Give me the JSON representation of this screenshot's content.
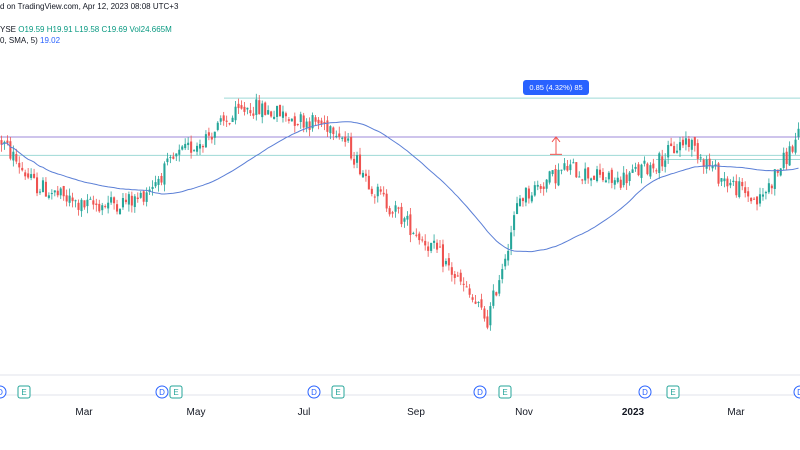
{
  "header": {
    "line1": "d on TradingView.com, Apr 12, 2023 08:08 UTC+3",
    "ticker_prefix": "YSE",
    "open": "O19.59",
    "high": "H19.91",
    "low": "L19.58",
    "close": "C19.69",
    "volume": "Vol24.665M",
    "ma_label": "0, SMA, 5)",
    "ma_value": "19.02"
  },
  "measure_label": "0.85 (4.32%) 85",
  "colors": {
    "up": "#26a69a",
    "down": "#ef5350",
    "sma": "#5b7fd6",
    "horizontal_line_purple": "#9c8ad8",
    "horizontal_line_cyan": "#9ed9d6",
    "event_dividend": "#2962ff",
    "event_earnings": "#26a69a",
    "axis_text": "#131722",
    "background": "#ffffff"
  },
  "x_axis_labels": [
    "Mar",
    "May",
    "Jul",
    "Sep",
    "Nov",
    "2023",
    "Mar"
  ],
  "event_markers": [
    "D",
    "E",
    "D",
    "E",
    "D",
    "E",
    "D",
    "E",
    "D",
    "E",
    "D"
  ],
  "chart_data": {
    "type": "candlestick",
    "title": "",
    "xlabel": "",
    "ylabel": "",
    "x_ticks": [
      "Mar",
      "May",
      "Jul",
      "Sep",
      "Nov",
      "2023",
      "Mar"
    ],
    "ylim": [
      10,
      26
    ],
    "grid": false,
    "indicator": {
      "name": "SMA",
      "period": 50,
      "last_value": 19.02
    },
    "horizontal_levels": [
      {
        "value": 23.4,
        "style": "cyan"
      },
      {
        "value": 21.5,
        "style": "purple"
      },
      {
        "value": 20.6,
        "style": "cyan"
      },
      {
        "value": 20.4,
        "style": "cyan"
      }
    ],
    "measure": {
      "from": 20.65,
      "to": 21.5,
      "label": "0.85 (4.32%) 85"
    },
    "key_prices": [
      {
        "t": 0,
        "price": 21.3
      },
      {
        "t": 0.04,
        "price": 19.2
      },
      {
        "t": 0.1,
        "price": 18.1
      },
      {
        "t": 0.17,
        "price": 18.4
      },
      {
        "t": 0.22,
        "price": 20.5
      },
      {
        "t": 0.31,
        "price": 23.0
      },
      {
        "t": 0.37,
        "price": 22.4
      },
      {
        "t": 0.42,
        "price": 22.0
      },
      {
        "t": 0.47,
        "price": 18.8
      },
      {
        "t": 0.55,
        "price": 15.7
      },
      {
        "t": 0.61,
        "price": 12.5
      },
      {
        "t": 0.65,
        "price": 18.5
      },
      {
        "t": 0.71,
        "price": 20.0
      },
      {
        "t": 0.77,
        "price": 19.3
      },
      {
        "t": 0.82,
        "price": 20.2
      },
      {
        "t": 0.86,
        "price": 21.4
      },
      {
        "t": 0.9,
        "price": 19.6
      },
      {
        "t": 0.95,
        "price": 18.3
      },
      {
        "t": 1.0,
        "price": 21.5
      }
    ]
  }
}
